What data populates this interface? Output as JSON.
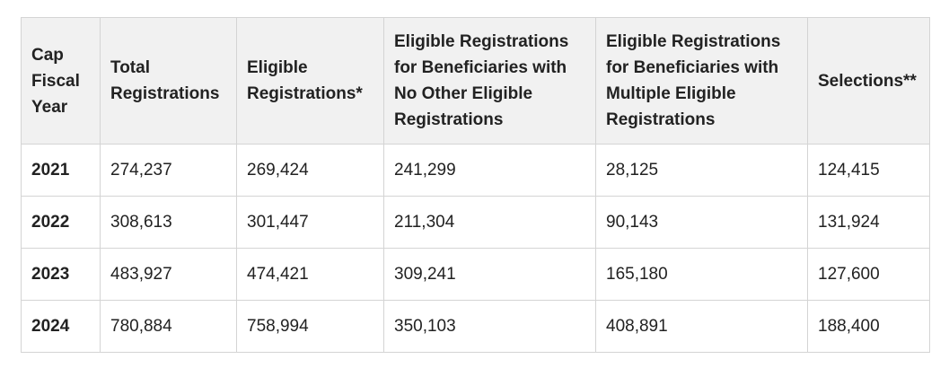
{
  "table": {
    "headers": [
      "Cap Fiscal Year",
      "Total Registrations",
      "Eligible Registrations*",
      "Eligible Registrations for Beneficiaries with No Other Eligible Registrations",
      "Eligible Registrations for Beneficiaries with Multiple Eligible Registrations",
      "Selections**"
    ],
    "rows": [
      [
        "2021",
        "274,237",
        "269,424",
        "241,299",
        "28,125",
        "124,415"
      ],
      [
        "2022",
        "308,613",
        "301,447",
        "211,304",
        "90,143",
        "131,924"
      ],
      [
        "2023",
        "483,927",
        "474,421",
        "309,241",
        "165,180",
        "127,600"
      ],
      [
        "2024",
        "780,884",
        "758,994",
        "350,103",
        "408,891",
        "188,400"
      ]
    ]
  }
}
